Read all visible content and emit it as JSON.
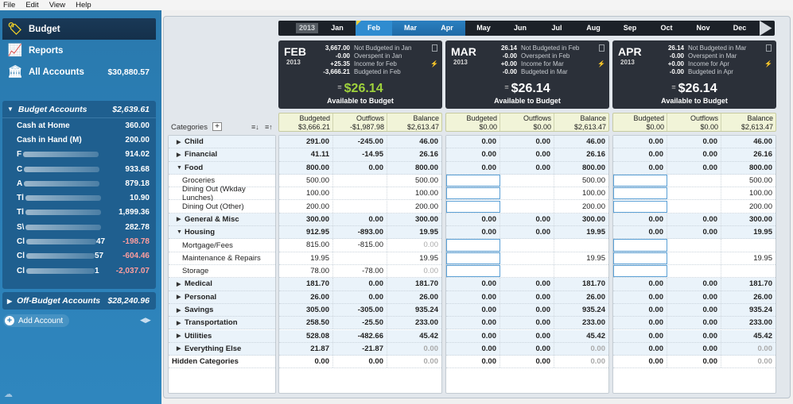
{
  "menu": [
    "File",
    "Edit",
    "View",
    "Help"
  ],
  "nav": {
    "budget": "Budget",
    "reports": "Reports",
    "all_accounts": "All Accounts",
    "all_accounts_amount": "$30,880.57"
  },
  "budget_accounts": {
    "title": "Budget Accounts",
    "amount": "$2,639.61",
    "items": [
      {
        "name": "Cash at Home",
        "suffix": "",
        "amount": "360.00",
        "neg": false,
        "blur": 0
      },
      {
        "name": "Cash in Hand (M)",
        "suffix": "",
        "amount": "200.00",
        "neg": false,
        "blur": 0
      },
      {
        "name": "F",
        "suffix": "",
        "amount": "914.02",
        "neg": false,
        "blur": 95
      },
      {
        "name": "C",
        "suffix": "",
        "amount": "933.68",
        "neg": false,
        "blur": 95
      },
      {
        "name": "A",
        "suffix": "",
        "amount": "879.18",
        "neg": false,
        "blur": 95
      },
      {
        "name": "Tl",
        "suffix": "",
        "amount": "10.90",
        "neg": false,
        "blur": 95
      },
      {
        "name": "Tl",
        "suffix": "",
        "amount": "1,899.36",
        "neg": false,
        "blur": 95
      },
      {
        "name": "S\\",
        "suffix": "",
        "amount": "282.78",
        "neg": false,
        "blur": 95
      },
      {
        "name": "Cl",
        "suffix": "47",
        "amount": "-198.78",
        "neg": true,
        "blur": 88
      },
      {
        "name": "Cl",
        "suffix": "57",
        "amount": "-604.46",
        "neg": true,
        "blur": 86
      },
      {
        "name": "Cl",
        "suffix": "1",
        "amount": "-2,037.07",
        "neg": true,
        "blur": 86
      }
    ]
  },
  "off_budget": {
    "title": "Off-Budget Accounts",
    "amount": "$28,240.96"
  },
  "add_account": "Add Account",
  "year_label": "2013",
  "months": [
    "Jan",
    "Feb",
    "Mar",
    "Apr",
    "May",
    "Jun",
    "Jul",
    "Aug",
    "Sep",
    "Oct",
    "Nov",
    "Dec"
  ],
  "current_month_index": 1,
  "panels": [
    {
      "name": "FEB",
      "year": "2013",
      "lines": [
        {
          "v": "3,667.00",
          "t": "Not Budgeted in Jan"
        },
        {
          "v": "-0.00",
          "t": "Overspent in Jan"
        },
        {
          "v": "+25.35",
          "t": "Income for Feb"
        },
        {
          "v": "-3,666.21",
          "t": "Budgeted in Feb"
        }
      ],
      "available": "$26.14",
      "available_label": "Available to Budget",
      "budgeted": "$3,666.21",
      "outflows": "-$1,987.98",
      "balance": "$2,613.47"
    },
    {
      "name": "MAR",
      "year": "2013",
      "lines": [
        {
          "v": "26.14",
          "t": "Not Budgeted in Feb"
        },
        {
          "v": "-0.00",
          "t": "Overspent in Feb"
        },
        {
          "v": "+0.00",
          "t": "Income for Mar"
        },
        {
          "v": "-0.00",
          "t": "Budgeted in Mar"
        }
      ],
      "available": "$26.14",
      "available_label": "Available to Budget",
      "budgeted": "$0.00",
      "outflows": "$0.00",
      "balance": "$2,613.47"
    },
    {
      "name": "APR",
      "year": "2013",
      "lines": [
        {
          "v": "26.14",
          "t": "Not Budgeted in Mar"
        },
        {
          "v": "-0.00",
          "t": "Overspent in Mar"
        },
        {
          "v": "+0.00",
          "t": "Income for Apr"
        },
        {
          "v": "-0.00",
          "t": "Budgeted in Apr"
        }
      ],
      "available": "$26.14",
      "available_label": "Available to Budget",
      "budgeted": "$0.00",
      "outflows": "$0.00",
      "balance": "$2,613.47"
    }
  ],
  "col_labels": {
    "budgeted": "Budgeted",
    "outflows": "Outflows",
    "balance": "Balance"
  },
  "categories_title": "Categories",
  "rows": [
    {
      "name": "Child",
      "type": "master",
      "expanded": false,
      "feb": [
        "291.00",
        "-245.00",
        "46.00"
      ],
      "mar": [
        "0.00",
        "0.00",
        "46.00"
      ],
      "apr": [
        "0.00",
        "0.00",
        "46.00"
      ]
    },
    {
      "name": "Financial",
      "type": "master",
      "expanded": false,
      "feb": [
        "41.11",
        "-14.95",
        "26.16"
      ],
      "mar": [
        "0.00",
        "0.00",
        "26.16"
      ],
      "apr": [
        "0.00",
        "0.00",
        "26.16"
      ]
    },
    {
      "name": "Food",
      "type": "master",
      "expanded": true,
      "feb": [
        "800.00",
        "0.00",
        "800.00"
      ],
      "mar": [
        "0.00",
        "0.00",
        "800.00"
      ],
      "apr": [
        "0.00",
        "0.00",
        "800.00"
      ]
    },
    {
      "name": "Groceries",
      "type": "sub",
      "feb": [
        "500.00",
        "",
        "500.00"
      ],
      "mar": [
        "",
        "",
        "500.00"
      ],
      "apr": [
        "",
        "",
        "500.00"
      ]
    },
    {
      "name": "Dining Out (Wkday Lunches)",
      "type": "sub",
      "feb": [
        "100.00",
        "",
        "100.00"
      ],
      "mar": [
        "",
        "",
        "100.00"
      ],
      "apr": [
        "",
        "",
        "100.00"
      ]
    },
    {
      "name": "Dining Out (Other)",
      "type": "sub",
      "feb": [
        "200.00",
        "",
        "200.00"
      ],
      "mar": [
        "",
        "",
        "200.00"
      ],
      "apr": [
        "",
        "",
        "200.00"
      ]
    },
    {
      "name": "General & Misc",
      "type": "master",
      "expanded": false,
      "feb": [
        "300.00",
        "0.00",
        "300.00"
      ],
      "mar": [
        "0.00",
        "0.00",
        "300.00"
      ],
      "apr": [
        "0.00",
        "0.00",
        "300.00"
      ]
    },
    {
      "name": "Housing",
      "type": "master",
      "expanded": true,
      "feb": [
        "912.95",
        "-893.00",
        "19.95"
      ],
      "mar": [
        "0.00",
        "0.00",
        "19.95"
      ],
      "apr": [
        "0.00",
        "0.00",
        "19.95"
      ]
    },
    {
      "name": "Mortgage/Fees",
      "type": "sub",
      "feb": [
        "815.00",
        "-815.00",
        "0.00"
      ],
      "mar": [
        "",
        "",
        ""
      ],
      "apr": [
        "",
        "",
        ""
      ],
      "greyBal": true
    },
    {
      "name": "Maintenance & Repairs",
      "type": "sub",
      "feb": [
        "19.95",
        "",
        "19.95"
      ],
      "mar": [
        "",
        "",
        "19.95"
      ],
      "apr": [
        "",
        "",
        "19.95"
      ]
    },
    {
      "name": "Storage",
      "type": "sub",
      "feb": [
        "78.00",
        "-78.00",
        "0.00"
      ],
      "mar": [
        "",
        "",
        ""
      ],
      "apr": [
        "",
        "",
        ""
      ],
      "greyBal": true
    },
    {
      "name": "Medical",
      "type": "master",
      "expanded": false,
      "feb": [
        "181.70",
        "0.00",
        "181.70"
      ],
      "mar": [
        "0.00",
        "0.00",
        "181.70"
      ],
      "apr": [
        "0.00",
        "0.00",
        "181.70"
      ]
    },
    {
      "name": "Personal",
      "type": "master",
      "expanded": false,
      "feb": [
        "26.00",
        "0.00",
        "26.00"
      ],
      "mar": [
        "0.00",
        "0.00",
        "26.00"
      ],
      "apr": [
        "0.00",
        "0.00",
        "26.00"
      ]
    },
    {
      "name": "Savings",
      "type": "master",
      "expanded": false,
      "feb": [
        "305.00",
        "-305.00",
        "935.24"
      ],
      "mar": [
        "0.00",
        "0.00",
        "935.24"
      ],
      "apr": [
        "0.00",
        "0.00",
        "935.24"
      ]
    },
    {
      "name": "Transportation",
      "type": "master",
      "expanded": false,
      "feb": [
        "258.50",
        "-25.50",
        "233.00"
      ],
      "mar": [
        "0.00",
        "0.00",
        "233.00"
      ],
      "apr": [
        "0.00",
        "0.00",
        "233.00"
      ]
    },
    {
      "name": "Utilities",
      "type": "master",
      "expanded": false,
      "feb": [
        "528.08",
        "-482.66",
        "45.42"
      ],
      "mar": [
        "0.00",
        "0.00",
        "45.42"
      ],
      "apr": [
        "0.00",
        "0.00",
        "45.42"
      ]
    },
    {
      "name": "Everything Else",
      "type": "master",
      "expanded": false,
      "feb": [
        "21.87",
        "-21.87",
        "0.00"
      ],
      "mar": [
        "0.00",
        "0.00",
        "0.00"
      ],
      "apr": [
        "0.00",
        "0.00",
        "0.00"
      ],
      "greyBal": true
    },
    {
      "name": "Hidden Categories",
      "type": "hidden",
      "feb": [
        "0.00",
        "0.00",
        "0.00"
      ],
      "mar": [
        "0.00",
        "0.00",
        "0.00"
      ],
      "apr": [
        "0.00",
        "0.00",
        "0.00"
      ],
      "greyBal": true
    }
  ]
}
